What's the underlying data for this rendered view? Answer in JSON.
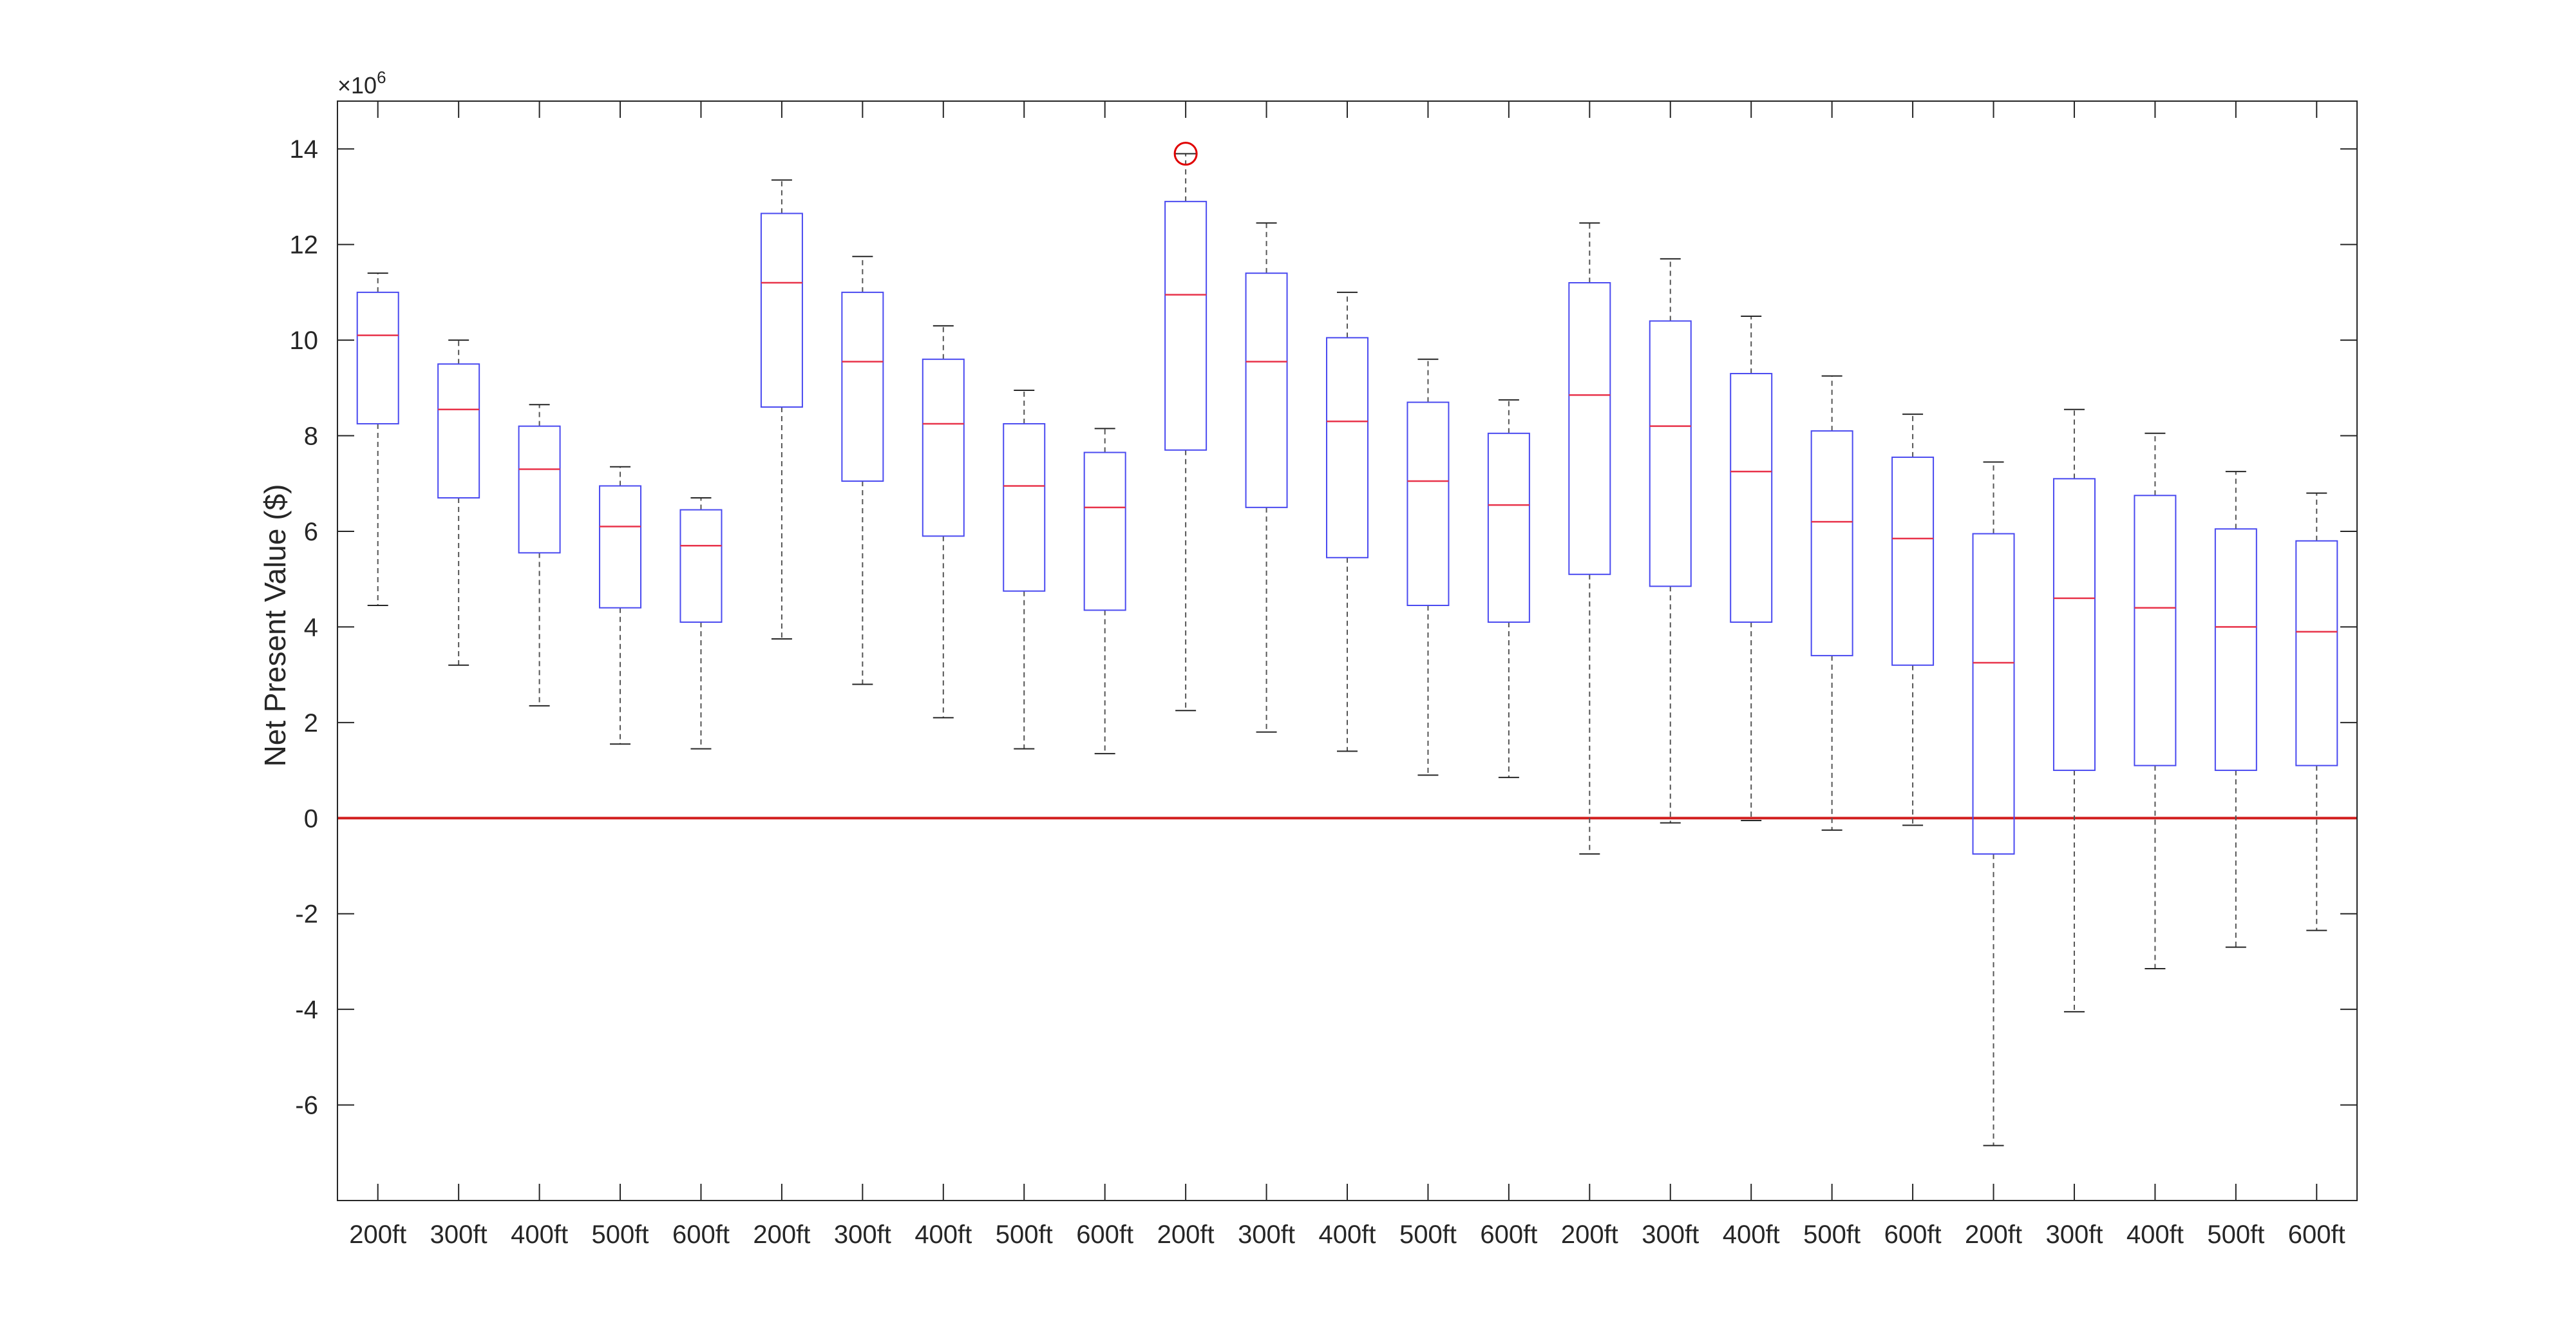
{
  "chart_data": {
    "type": "box",
    "ylabel": "Net Present Value ($)",
    "y_exponent_label": "×10",
    "y_exponent": "6",
    "ylim": [
      -8,
      15
    ],
    "yticks": [
      -6,
      -4,
      -2,
      0,
      2,
      4,
      6,
      8,
      10,
      12,
      14
    ],
    "ytick_labels": [
      "-6",
      "-4",
      "-2",
      "0",
      "2",
      "4",
      "6",
      "8",
      "10",
      "12",
      "14"
    ],
    "reference_line_y": 0,
    "categories": [
      "200ft",
      "300ft",
      "400ft",
      "500ft",
      "600ft",
      "200ft",
      "300ft",
      "400ft",
      "500ft",
      "600ft",
      "200ft",
      "300ft",
      "400ft",
      "500ft",
      "600ft",
      "200ft",
      "300ft",
      "400ft",
      "500ft",
      "600ft",
      "200ft",
      "300ft",
      "400ft",
      "500ft",
      "600ft"
    ],
    "boxes": [
      {
        "whisker_low": 4.45,
        "q1": 8.25,
        "median": 10.1,
        "q3": 11.0,
        "whisker_high": 11.4
      },
      {
        "whisker_low": 3.2,
        "q1": 6.7,
        "median": 8.55,
        "q3": 9.5,
        "whisker_high": 10.0
      },
      {
        "whisker_low": 2.35,
        "q1": 5.55,
        "median": 7.3,
        "q3": 8.2,
        "whisker_high": 8.65
      },
      {
        "whisker_low": 1.55,
        "q1": 4.4,
        "median": 6.1,
        "q3": 6.95,
        "whisker_high": 7.35
      },
      {
        "whisker_low": 1.45,
        "q1": 4.1,
        "median": 5.7,
        "q3": 6.45,
        "whisker_high": 6.7
      },
      {
        "whisker_low": 3.75,
        "q1": 8.6,
        "median": 11.2,
        "q3": 12.65,
        "whisker_high": 13.35
      },
      {
        "whisker_low": 2.8,
        "q1": 7.05,
        "median": 9.55,
        "q3": 11.0,
        "whisker_high": 11.75
      },
      {
        "whisker_low": 2.1,
        "q1": 5.9,
        "median": 8.25,
        "q3": 9.6,
        "whisker_high": 10.3
      },
      {
        "whisker_low": 1.45,
        "q1": 4.75,
        "median": 6.95,
        "q3": 8.25,
        "whisker_high": 8.95
      },
      {
        "whisker_low": 1.35,
        "q1": 4.35,
        "median": 6.5,
        "q3": 7.65,
        "whisker_high": 8.15
      },
      {
        "whisker_low": 2.25,
        "q1": 7.7,
        "median": 10.95,
        "q3": 12.9,
        "whisker_high": 13.9,
        "outliers": [
          13.9
        ]
      },
      {
        "whisker_low": 1.8,
        "q1": 6.5,
        "median": 9.55,
        "q3": 11.4,
        "whisker_high": 12.45
      },
      {
        "whisker_low": 1.4,
        "q1": 5.45,
        "median": 8.3,
        "q3": 10.05,
        "whisker_high": 11.0
      },
      {
        "whisker_low": 0.9,
        "q1": 4.45,
        "median": 7.05,
        "q3": 8.7,
        "whisker_high": 9.6
      },
      {
        "whisker_low": 0.85,
        "q1": 4.1,
        "median": 6.55,
        "q3": 8.05,
        "whisker_high": 8.75
      },
      {
        "whisker_low": -0.75,
        "q1": 5.1,
        "median": 8.85,
        "q3": 11.2,
        "whisker_high": 12.45
      },
      {
        "whisker_low": -0.1,
        "q1": 4.85,
        "median": 8.2,
        "q3": 10.4,
        "whisker_high": 11.7
      },
      {
        "whisker_low": -0.05,
        "q1": 4.1,
        "median": 7.25,
        "q3": 9.3,
        "whisker_high": 10.5
      },
      {
        "whisker_low": -0.25,
        "q1": 3.4,
        "median": 6.2,
        "q3": 8.1,
        "whisker_high": 9.25
      },
      {
        "whisker_low": -0.15,
        "q1": 3.2,
        "median": 5.85,
        "q3": 7.55,
        "whisker_high": 8.45
      },
      {
        "whisker_low": -6.85,
        "q1": -0.75,
        "median": 3.25,
        "q3": 5.95,
        "whisker_high": 7.45
      },
      {
        "whisker_low": -4.05,
        "q1": 1.0,
        "median": 4.6,
        "q3": 7.1,
        "whisker_high": 8.55
      },
      {
        "whisker_low": -3.15,
        "q1": 1.1,
        "median": 4.4,
        "q3": 6.75,
        "whisker_high": 8.05
      },
      {
        "whisker_low": -2.7,
        "q1": 1.0,
        "median": 4.0,
        "q3": 6.05,
        "whisker_high": 7.25
      },
      {
        "whisker_low": -2.35,
        "q1": 1.1,
        "median": 3.9,
        "q3": 5.8,
        "whisker_high": 6.8
      }
    ],
    "colors": {
      "box": "#4a4af0",
      "median": "#e8334a",
      "whisker": "#555555",
      "outlier": "#e00000",
      "zero_line": "#d22020",
      "axis": "#262626"
    },
    "grid": false,
    "legend": "none"
  }
}
